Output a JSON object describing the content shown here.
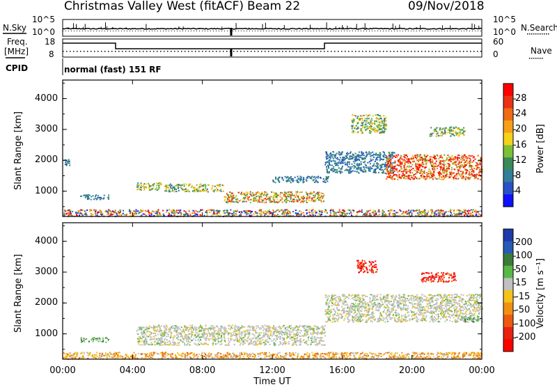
{
  "header": {
    "station": "Christmas Valley West (fitACF)",
    "beam": "Beam 22",
    "date": "09/Nov/2018"
  },
  "strip": {
    "nsky_label": "N.Sky",
    "nsearch_label": "N.Search",
    "freq_label_line1": "Freq.",
    "freq_label_line2": "[MHz]",
    "nave_label": "Nave",
    "cpid_label": "CPID",
    "cpid_text": "normal (fast) 151 RF",
    "noise_ticks": [
      "10^5",
      "10^0"
    ],
    "noise_ticks_right": [
      "10^5",
      "10^0"
    ],
    "freq_ticks": [
      "18",
      "8"
    ],
    "nave_ticks": [
      "60",
      "0"
    ]
  },
  "chart_data": [
    {
      "type": "heatmap",
      "title": "",
      "xlabel": "Time UT",
      "ylabel": "Slant Range [km]",
      "x_ticks": [
        "00:00",
        "04:00",
        "08:00",
        "12:00",
        "16:00",
        "20:00",
        "00:00"
      ],
      "y_ticks": [
        1000,
        2000,
        3000,
        4000
      ],
      "xlim_hours": [
        0,
        24
      ],
      "ylim_km": [
        180,
        4600
      ],
      "colorbar": {
        "label": "Power [dB]",
        "ticks": [
          "4",
          "8",
          "12",
          "16",
          "20",
          "24",
          "28"
        ],
        "colors": [
          "#1010ff",
          "#2a50c8",
          "#2f7f9a",
          "#3a8a5a",
          "#7cc036",
          "#f5d21a",
          "#f5a018",
          "#ef6a15",
          "#e93216",
          "#ff0000"
        ]
      },
      "regions": [
        {
          "t0": 0.0,
          "t1": 24.0,
          "r0": 200,
          "r1": 420,
          "level": "mixed-high"
        },
        {
          "t0": 0.1,
          "t1": 0.4,
          "r0": 1850,
          "r1": 2050,
          "level": "low"
        },
        {
          "t0": 1.0,
          "t1": 2.6,
          "r0": 750,
          "r1": 900,
          "level": "low"
        },
        {
          "t0": 4.2,
          "t1": 5.6,
          "r0": 1050,
          "r1": 1300,
          "level": "mid"
        },
        {
          "t0": 5.8,
          "t1": 9.2,
          "r0": 1000,
          "r1": 1250,
          "level": "mid"
        },
        {
          "t0": 9.2,
          "t1": 15.0,
          "r0": 650,
          "r1": 1000,
          "level": "mid-high"
        },
        {
          "t0": 12.0,
          "t1": 15.2,
          "r0": 1300,
          "r1": 1500,
          "level": "low"
        },
        {
          "t0": 15.0,
          "t1": 19.0,
          "r0": 1600,
          "r1": 2300,
          "level": "low"
        },
        {
          "t0": 16.5,
          "t1": 18.5,
          "r0": 2900,
          "r1": 3500,
          "level": "mid"
        },
        {
          "t0": 18.5,
          "t1": 24.0,
          "r0": 1400,
          "r1": 2200,
          "level": "high"
        },
        {
          "t0": 21.0,
          "t1": 23.0,
          "r0": 2800,
          "r1": 3100,
          "level": "mid"
        }
      ]
    },
    {
      "type": "heatmap",
      "title": "",
      "xlabel": "Time UT",
      "ylabel": "Slant Range [km]",
      "x_ticks": [
        "00:00",
        "04:00",
        "08:00",
        "12:00",
        "16:00",
        "20:00",
        "00:00"
      ],
      "y_ticks": [
        1000,
        2000,
        3000,
        4000
      ],
      "xlim_hours": [
        0,
        24
      ],
      "ylim_km": [
        180,
        4600
      ],
      "colorbar": {
        "label": "Velocity [m s⁻¹]",
        "ticks": [
          "200",
          "100",
          "50",
          "15",
          "-15",
          "-50",
          "-100",
          "-200"
        ],
        "colors": [
          "#1e3aa8",
          "#2a5ab8",
          "#3c7a3c",
          "#58b848",
          "#c0c0c0",
          "#f4c21a",
          "#f09014",
          "#ec5a12",
          "#e82212",
          "#ff0000"
        ]
      },
      "regions": [
        {
          "t0": 0.0,
          "t1": 24.0,
          "r0": 200,
          "r1": 420,
          "level": "orange"
        },
        {
          "t0": 1.0,
          "t1": 2.6,
          "r0": 750,
          "r1": 900,
          "level": "green"
        },
        {
          "t0": 4.2,
          "t1": 15.0,
          "r0": 650,
          "r1": 1300,
          "level": "gray"
        },
        {
          "t0": 15.0,
          "t1": 24.0,
          "r0": 1400,
          "r1": 2300,
          "level": "gray"
        },
        {
          "t0": 16.8,
          "t1": 18.0,
          "r0": 3000,
          "r1": 3400,
          "level": "red"
        },
        {
          "t0": 20.5,
          "t1": 22.5,
          "r0": 2700,
          "r1": 3000,
          "level": "red"
        },
        {
          "t0": 22.8,
          "t1": 23.8,
          "r0": 1400,
          "r1": 1600,
          "level": "green"
        }
      ]
    }
  ]
}
